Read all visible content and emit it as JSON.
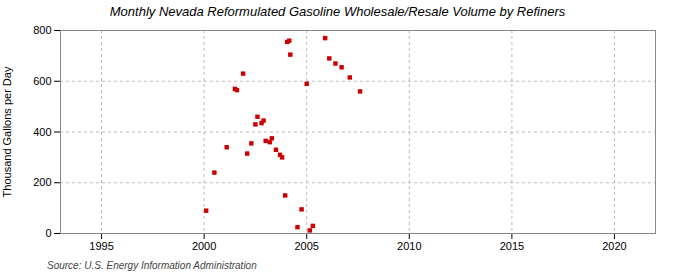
{
  "chart_data": {
    "type": "scatter",
    "title": "Monthly Nevada Reformulated Gasoline Wholesale/Resale Volume by Refiners",
    "ylabel": "Thousand Gallons per Day",
    "annotations": [
      "Source: U.S. Energy Information Administration"
    ],
    "x": [
      2000.1,
      2000.5,
      2001.1,
      2001.5,
      2001.6,
      2001.9,
      2002.1,
      2002.3,
      2002.5,
      2002.6,
      2002.8,
      2002.9,
      2003.0,
      2003.2,
      2003.3,
      2003.5,
      2003.7,
      2003.8,
      2003.95,
      2004.05,
      2004.15,
      2004.2,
      2004.55,
      2004.75,
      2005.0,
      2005.15,
      2005.3,
      2005.9,
      2006.1,
      2006.4,
      2006.7,
      2007.1,
      2007.6
    ],
    "values": [
      90,
      240,
      340,
      570,
      565,
      630,
      315,
      355,
      430,
      460,
      435,
      445,
      365,
      360,
      375,
      330,
      310,
      300,
      150,
      755,
      760,
      705,
      25,
      95,
      590,
      12,
      30,
      770,
      690,
      670,
      655,
      615,
      560
    ],
    "color": "#cc0000",
    "marker": "square",
    "xlim": [
      1993,
      2022
    ],
    "ylim": [
      0,
      800
    ],
    "xticks": [
      1995,
      2000,
      2005,
      2010,
      2015,
      2020
    ],
    "yticks": [
      0,
      200,
      400,
      600,
      800
    ],
    "grid": true
  }
}
